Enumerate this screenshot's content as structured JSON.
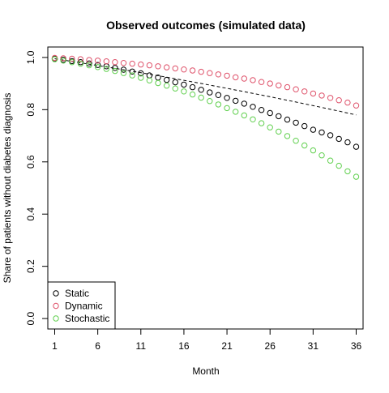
{
  "chart_data": {
    "type": "scatter",
    "title": "Observed outcomes (simulated data)",
    "xlabel": "Month",
    "ylabel": "Share of patients without diabetes diagnosis",
    "xlim": [
      1,
      36
    ],
    "ylim": [
      0,
      1
    ],
    "x_ticks": [
      1,
      6,
      11,
      16,
      21,
      26,
      31,
      36
    ],
    "y_ticks": [
      0.0,
      0.2,
      0.4,
      0.6,
      0.8,
      1.0
    ],
    "y_tick_labels": [
      "0.0",
      "0.2",
      "0.4",
      "0.6",
      "0.8",
      "1.0"
    ],
    "grid": false,
    "legend_position": "bottom-left",
    "x": [
      1,
      2,
      3,
      4,
      5,
      6,
      7,
      8,
      9,
      10,
      11,
      12,
      13,
      14,
      15,
      16,
      17,
      18,
      19,
      20,
      21,
      22,
      23,
      24,
      25,
      26,
      27,
      28,
      29,
      30,
      31,
      32,
      33,
      34,
      35,
      36
    ],
    "series": [
      {
        "name": "Static",
        "color": "#000000",
        "marker": "open-circle",
        "values": [
          0.995,
          0.991,
          0.986,
          0.982,
          0.977,
          0.971,
          0.966,
          0.96,
          0.953,
          0.946,
          0.939,
          0.931,
          0.923,
          0.914,
          0.905,
          0.896,
          0.886,
          0.876,
          0.866,
          0.856,
          0.845,
          0.834,
          0.823,
          0.811,
          0.799,
          0.787,
          0.775,
          0.762,
          0.75,
          0.737,
          0.723,
          0.713,
          0.702,
          0.688,
          0.675,
          0.658
        ]
      },
      {
        "name": "Dynamic",
        "color": "#DF536B",
        "marker": "open-circle",
        "values": [
          0.998,
          0.997,
          0.995,
          0.993,
          0.99,
          0.988,
          0.985,
          0.982,
          0.979,
          0.976,
          0.973,
          0.97,
          0.966,
          0.962,
          0.958,
          0.954,
          0.95,
          0.945,
          0.94,
          0.935,
          0.93,
          0.924,
          0.919,
          0.913,
          0.906,
          0.9,
          0.893,
          0.886,
          0.878,
          0.87,
          0.862,
          0.854,
          0.845,
          0.836,
          0.827,
          0.816
        ]
      },
      {
        "name": "Stochastic",
        "color": "#61D04F",
        "marker": "open-circle",
        "values": [
          0.993,
          0.988,
          0.982,
          0.976,
          0.97,
          0.963,
          0.956,
          0.948,
          0.94,
          0.931,
          0.922,
          0.912,
          0.902,
          0.892,
          0.881,
          0.87,
          0.858,
          0.846,
          0.833,
          0.82,
          0.806,
          0.792,
          0.778,
          0.763,
          0.748,
          0.732,
          0.716,
          0.699,
          0.681,
          0.663,
          0.644,
          0.625,
          0.605,
          0.585,
          0.564,
          0.543
        ]
      }
    ],
    "reference_line": {
      "style": "dashed",
      "color": "#000000",
      "x": [
        1,
        36
      ],
      "y": [
        0.995,
        0.78
      ]
    }
  }
}
